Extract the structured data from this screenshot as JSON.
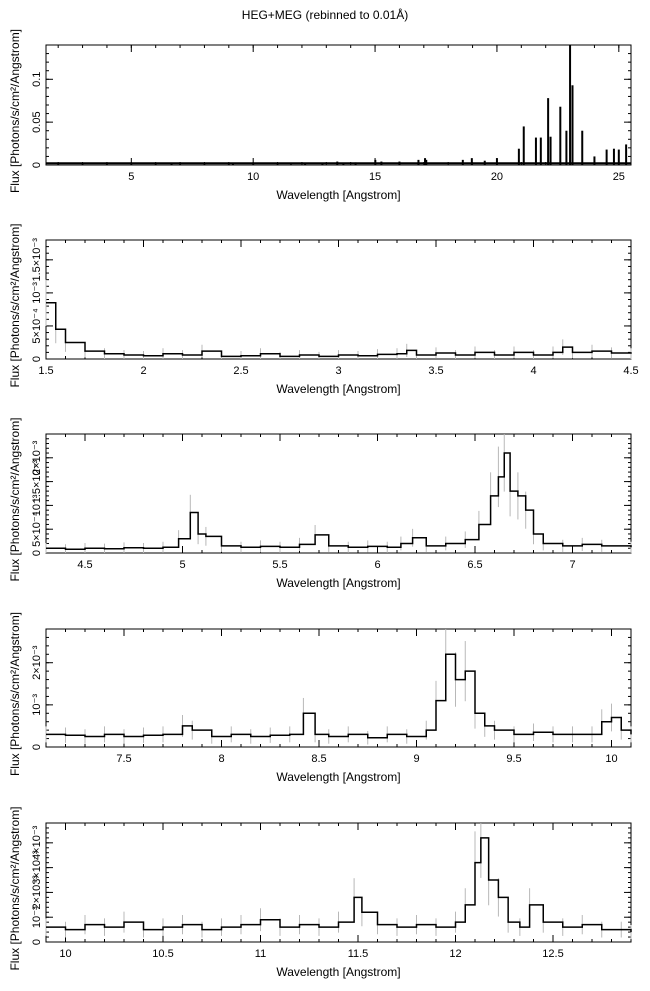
{
  "title": "HEG+MEG (rebinned to 0.01Å)",
  "chart_data": [
    {
      "type": "line",
      "title": "HEG+MEG (rebinned to 0.01Å)",
      "xlabel": "Wavelength [Angstrom]",
      "ylabel": "Flux [Photons/s/cm²/Angstrom]",
      "xlim": [
        1.5,
        25.5
      ],
      "ylim": [
        0,
        0.14
      ],
      "xticks": [
        "5",
        "10",
        "15",
        "20",
        "25"
      ],
      "xtick_values": [
        5,
        10,
        15,
        20,
        25
      ],
      "yticks": [
        "0",
        "0.05",
        "0.1"
      ],
      "ytick_values": [
        0,
        0.05,
        0.1
      ],
      "baseline": 0.002,
      "series": [
        {
          "x": [
            2.0,
            3.0,
            4.0,
            5.0,
            6.0,
            6.65,
            7.0,
            8.0,
            9.0,
            9.17,
            10.0,
            11.0,
            11.55,
            12.13,
            12.84,
            13.45,
            13.7,
            14.2,
            15.01,
            15.26,
            16.0,
            16.78,
            17.05,
            17.1,
            18.6,
            18.97,
            19.5,
            20.0,
            20.9,
            21.1,
            21.6,
            21.8,
            22.1,
            22.2,
            22.6,
            22.85,
            23.0,
            23.1,
            23.5,
            24.0,
            24.5,
            24.8,
            25.0,
            25.3
          ],
          "y": [
            0.001,
            0.001,
            0.001,
            0.001,
            0.001,
            0.002,
            0.001,
            0.001,
            0.001,
            0.002,
            0.001,
            0.001,
            0.001,
            0.002,
            0.002,
            0.004,
            0.002,
            0.003,
            0.006,
            0.004,
            0.004,
            0.006,
            0.008,
            0.006,
            0.006,
            0.008,
            0.005,
            0.008,
            0.019,
            0.045,
            0.032,
            0.032,
            0.078,
            0.033,
            0.068,
            0.04,
            0.14,
            0.093,
            0.04,
            0.01,
            0.018,
            0.019,
            0.018,
            0.024
          ]
        }
      ]
    },
    {
      "type": "line",
      "xlabel": "Wavelength [Angstrom]",
      "ylabel": "Flux [Photons/s/cm²/Angstrom]",
      "xlim": [
        1.5,
        4.5
      ],
      "ylim": [
        0,
        0.0018
      ],
      "xticks": [
        "1.5",
        "2",
        "2.5",
        "3",
        "3.5",
        "4",
        "4.5"
      ],
      "xtick_values": [
        1.5,
        2,
        2.5,
        3,
        3.5,
        4,
        4.5
      ],
      "yticks": [
        "0",
        "5×10⁻⁴",
        "10⁻³",
        "1.5×10⁻³"
      ],
      "ytick_values": [
        0,
        0.0005,
        0.001,
        0.0015
      ],
      "series": [
        {
          "x": [
            1.5,
            1.55,
            1.6,
            1.7,
            1.8,
            1.9,
            2.0,
            2.1,
            2.2,
            2.3,
            2.4,
            2.5,
            2.6,
            2.7,
            2.8,
            2.9,
            3.0,
            3.1,
            3.2,
            3.3,
            3.35,
            3.4,
            3.5,
            3.6,
            3.7,
            3.8,
            3.9,
            4.0,
            4.1,
            4.15,
            4.2,
            4.3,
            4.4,
            4.5
          ],
          "y": [
            0.00085,
            0.00045,
            0.00025,
            0.00012,
            8e-05,
            6e-05,
            5e-05,
            8e-05,
            6e-05,
            0.00012,
            4e-05,
            5e-05,
            8e-05,
            4e-05,
            6e-05,
            4e-05,
            6e-05,
            5e-05,
            7e-05,
            8e-05,
            0.00013,
            6e-05,
            9e-05,
            6e-05,
            0.0001,
            6e-05,
            0.0001,
            6e-05,
            0.0001,
            0.00018,
            0.0001,
            0.00012,
            9e-05,
            8e-05
          ]
        }
      ]
    },
    {
      "type": "line",
      "xlabel": "Wavelength [Angstrom]",
      "ylabel": "Flux [Photons/s/cm²/Angstrom]",
      "xlim": [
        4.3,
        7.3
      ],
      "ylim": [
        0,
        0.0025
      ],
      "xticks": [
        "4.5",
        "5",
        "5.5",
        "6",
        "6.5",
        "7"
      ],
      "xtick_values": [
        4.5,
        5,
        5.5,
        6,
        6.5,
        7
      ],
      "yticks": [
        "0",
        "5×10⁻⁴",
        "10⁻³",
        "1.5×10⁻³",
        "2×10⁻³"
      ],
      "ytick_values": [
        0,
        0.0005,
        0.001,
        0.0015,
        0.002
      ],
      "series": [
        {
          "x": [
            4.3,
            4.4,
            4.5,
            4.6,
            4.7,
            4.8,
            4.9,
            4.98,
            5.04,
            5.08,
            5.12,
            5.2,
            5.3,
            5.4,
            5.5,
            5.6,
            5.68,
            5.75,
            5.85,
            5.95,
            6.05,
            6.12,
            6.18,
            6.25,
            6.35,
            6.45,
            6.52,
            6.58,
            6.62,
            6.65,
            6.68,
            6.72,
            6.76,
            6.8,
            6.85,
            6.95,
            7.05,
            7.15,
            7.3
          ],
          "y": [
            0.0001,
            8e-05,
            0.0001,
            9e-05,
            0.00011,
            0.0001,
            0.00012,
            0.0003,
            0.00085,
            0.0004,
            0.00035,
            0.00015,
            0.00012,
            0.00014,
            0.00012,
            0.00018,
            0.00038,
            0.00015,
            0.00012,
            0.00014,
            0.00012,
            0.0002,
            0.00032,
            0.00015,
            0.0002,
            0.00028,
            0.0006,
            0.0012,
            0.0016,
            0.0021,
            0.0013,
            0.0012,
            0.0009,
            0.0004,
            0.0002,
            0.00015,
            0.00018,
            0.00015,
            0.00012
          ]
        }
      ]
    },
    {
      "type": "line",
      "xlabel": "Wavelength [Angstrom]",
      "ylabel": "Flux [Photons/s/cm²/Angstrom]",
      "xlim": [
        7.1,
        10.1
      ],
      "ylim": [
        0,
        0.0028
      ],
      "xticks": [
        "7.5",
        "8",
        "8.5",
        "9",
        "9.5",
        "10"
      ],
      "xtick_values": [
        7.5,
        8,
        8.5,
        9,
        9.5,
        10
      ],
      "yticks": [
        "0",
        "10⁻³",
        "2×10⁻³"
      ],
      "ytick_values": [
        0,
        0.001,
        0.002
      ],
      "series": [
        {
          "x": [
            7.1,
            7.2,
            7.3,
            7.4,
            7.5,
            7.6,
            7.7,
            7.8,
            7.85,
            7.95,
            8.05,
            8.15,
            8.25,
            8.35,
            8.42,
            8.48,
            8.55,
            8.65,
            8.75,
            8.85,
            8.95,
            9.05,
            9.1,
            9.15,
            9.2,
            9.25,
            9.3,
            9.35,
            9.4,
            9.5,
            9.6,
            9.7,
            9.8,
            9.9,
            9.95,
            10.0,
            10.05,
            10.1
          ],
          "y": [
            0.0003,
            0.00028,
            0.00025,
            0.0003,
            0.00025,
            0.00028,
            0.0003,
            0.0005,
            0.0004,
            0.00025,
            0.0003,
            0.00025,
            0.00028,
            0.0003,
            0.0008,
            0.0003,
            0.00025,
            0.0003,
            0.00022,
            0.0003,
            0.00025,
            0.0004,
            0.0011,
            0.0022,
            0.0016,
            0.0018,
            0.0008,
            0.0005,
            0.0004,
            0.0003,
            0.00035,
            0.0003,
            0.0003,
            0.0003,
            0.0006,
            0.0007,
            0.0004,
            0.0003
          ]
        }
      ]
    },
    {
      "type": "line",
      "xlabel": "Wavelength [Angstrom]",
      "ylabel": "Flux [Photons/s/cm²/Angstrom]",
      "xlim": [
        9.9,
        12.9
      ],
      "ylim": [
        0,
        0.0048
      ],
      "xticks": [
        "10",
        "10.5",
        "11",
        "11.5",
        "12",
        "12.5"
      ],
      "xtick_values": [
        10,
        10.5,
        11,
        11.5,
        12,
        12.5
      ],
      "yticks": [
        "0",
        "10⁻³",
        "2×10⁻³",
        "3×10⁻³",
        "4×10⁻³"
      ],
      "ytick_values": [
        0,
        0.001,
        0.002,
        0.003,
        0.004
      ],
      "series": [
        {
          "x": [
            9.9,
            10.0,
            10.1,
            10.2,
            10.3,
            10.4,
            10.5,
            10.6,
            10.7,
            10.8,
            10.9,
            11.0,
            11.1,
            11.2,
            11.3,
            11.4,
            11.48,
            11.52,
            11.6,
            11.7,
            11.8,
            11.9,
            12.0,
            12.05,
            12.1,
            12.13,
            12.17,
            12.22,
            12.27,
            12.33,
            12.38,
            12.45,
            12.55,
            12.65,
            12.75,
            12.85,
            12.9
          ],
          "y": [
            0.0006,
            0.0005,
            0.0007,
            0.0006,
            0.0008,
            0.0005,
            0.0006,
            0.0007,
            0.0005,
            0.0006,
            0.0007,
            0.0009,
            0.0006,
            0.0007,
            0.0006,
            0.0008,
            0.0018,
            0.0012,
            0.0007,
            0.0006,
            0.0007,
            0.0006,
            0.0008,
            0.0015,
            0.0032,
            0.0042,
            0.0025,
            0.0018,
            0.0008,
            0.0006,
            0.0015,
            0.0008,
            0.0006,
            0.0007,
            0.0005,
            0.0005,
            0.0004
          ]
        }
      ]
    }
  ]
}
